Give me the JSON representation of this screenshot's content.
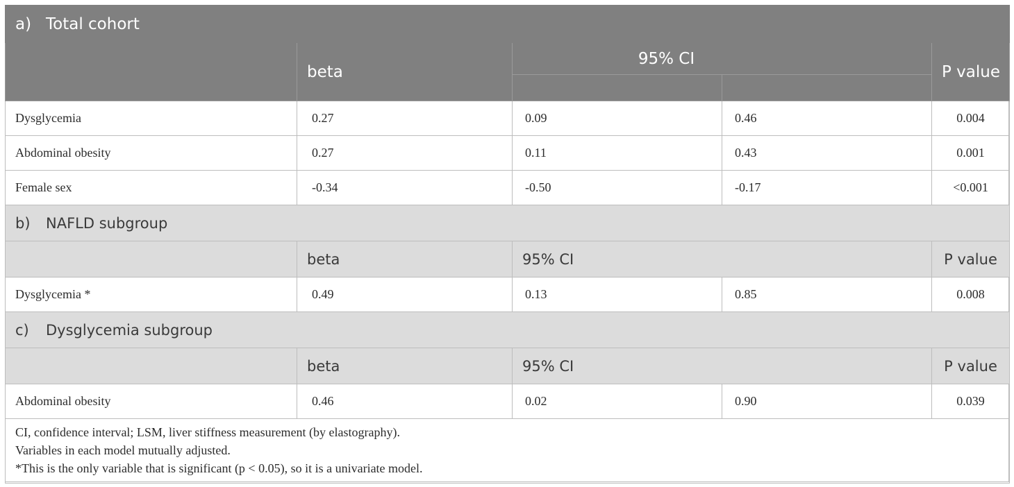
{
  "sections": [
    {
      "label_num": "a)",
      "label_text": "Total cohort",
      "header": {
        "beta": "beta",
        "ci": "95% CI",
        "p": "P value"
      },
      "rows": [
        {
          "variable": "Dysglycemia",
          "beta": "0.27",
          "ci_low": "0.09",
          "ci_high": "0.46",
          "p": "0.004"
        },
        {
          "variable": "Abdominal obesity",
          "beta": "0.27",
          "ci_low": "0.11",
          "ci_high": "0.43",
          "p": "0.001"
        },
        {
          "variable": "Female sex",
          "beta": "-0.34",
          "ci_low": "-0.50",
          "ci_high": "-0.17",
          "p": "<0.001"
        }
      ]
    },
    {
      "label_num": "b)",
      "label_text": "NAFLD subgroup",
      "header": {
        "beta": "beta",
        "ci": "95% CI",
        "p": "P value"
      },
      "rows": [
        {
          "variable": "Dysglycemia *",
          "beta": "0.49",
          "ci_low": "0.13",
          "ci_high": "0.85",
          "p": "0.008"
        }
      ]
    },
    {
      "label_num": "c)",
      "label_text": "Dysglycemia subgroup",
      "header": {
        "beta": "beta",
        "ci": "95% CI",
        "p": "P value"
      },
      "rows": [
        {
          "variable": "Abdominal obesity",
          "beta": "0.46",
          "ci_low": "0.02",
          "ci_high": "0.90",
          "p": "0.039"
        }
      ]
    }
  ],
  "notes": [
    "CI, confidence interval; LSM, liver stiffness measurement (by elastography).",
    "Variables in each model mutually adjusted.",
    "*This is the only variable that is significant (p < 0.05), so it is a univariate model."
  ],
  "colors": {
    "dark_header": "#808080",
    "light_header": "#dcdcdc",
    "border": "#bdbdbd"
  }
}
